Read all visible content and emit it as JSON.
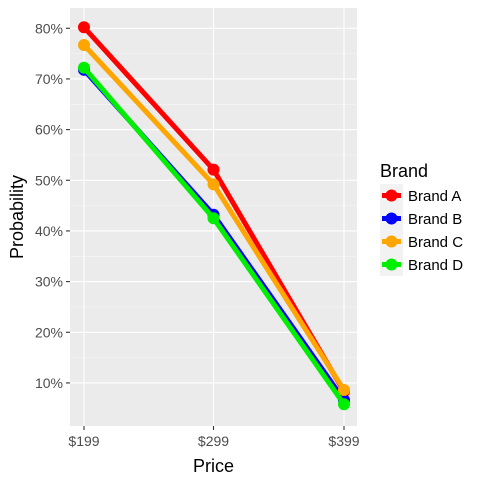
{
  "chart_data": {
    "type": "line",
    "xlabel": "Price",
    "ylabel": "Probability",
    "categories": [
      "$199",
      "$299",
      "$399"
    ],
    "ylim": [
      0.015,
      0.84
    ],
    "yticks": [
      0.1,
      0.2,
      0.3,
      0.4,
      0.5,
      0.6,
      0.7,
      0.8
    ],
    "ytick_labels": [
      "10%",
      "20%",
      "30%",
      "40%",
      "50%",
      "60%",
      "70%",
      "80%"
    ],
    "legend_title": "Brand",
    "legend_position": "right",
    "grid": true,
    "series": [
      {
        "name": "Brand A",
        "color": "#ff0000",
        "values": [
          0.802,
          0.521,
          0.083
        ]
      },
      {
        "name": "Brand B",
        "color": "#0000ff",
        "values": [
          0.718,
          0.432,
          0.066
        ]
      },
      {
        "name": "Brand C",
        "color": "#ffa500",
        "values": [
          0.767,
          0.492,
          0.086
        ]
      },
      {
        "name": "Brand D",
        "color": "#00ee00",
        "values": [
          0.722,
          0.425,
          0.058
        ]
      }
    ]
  }
}
